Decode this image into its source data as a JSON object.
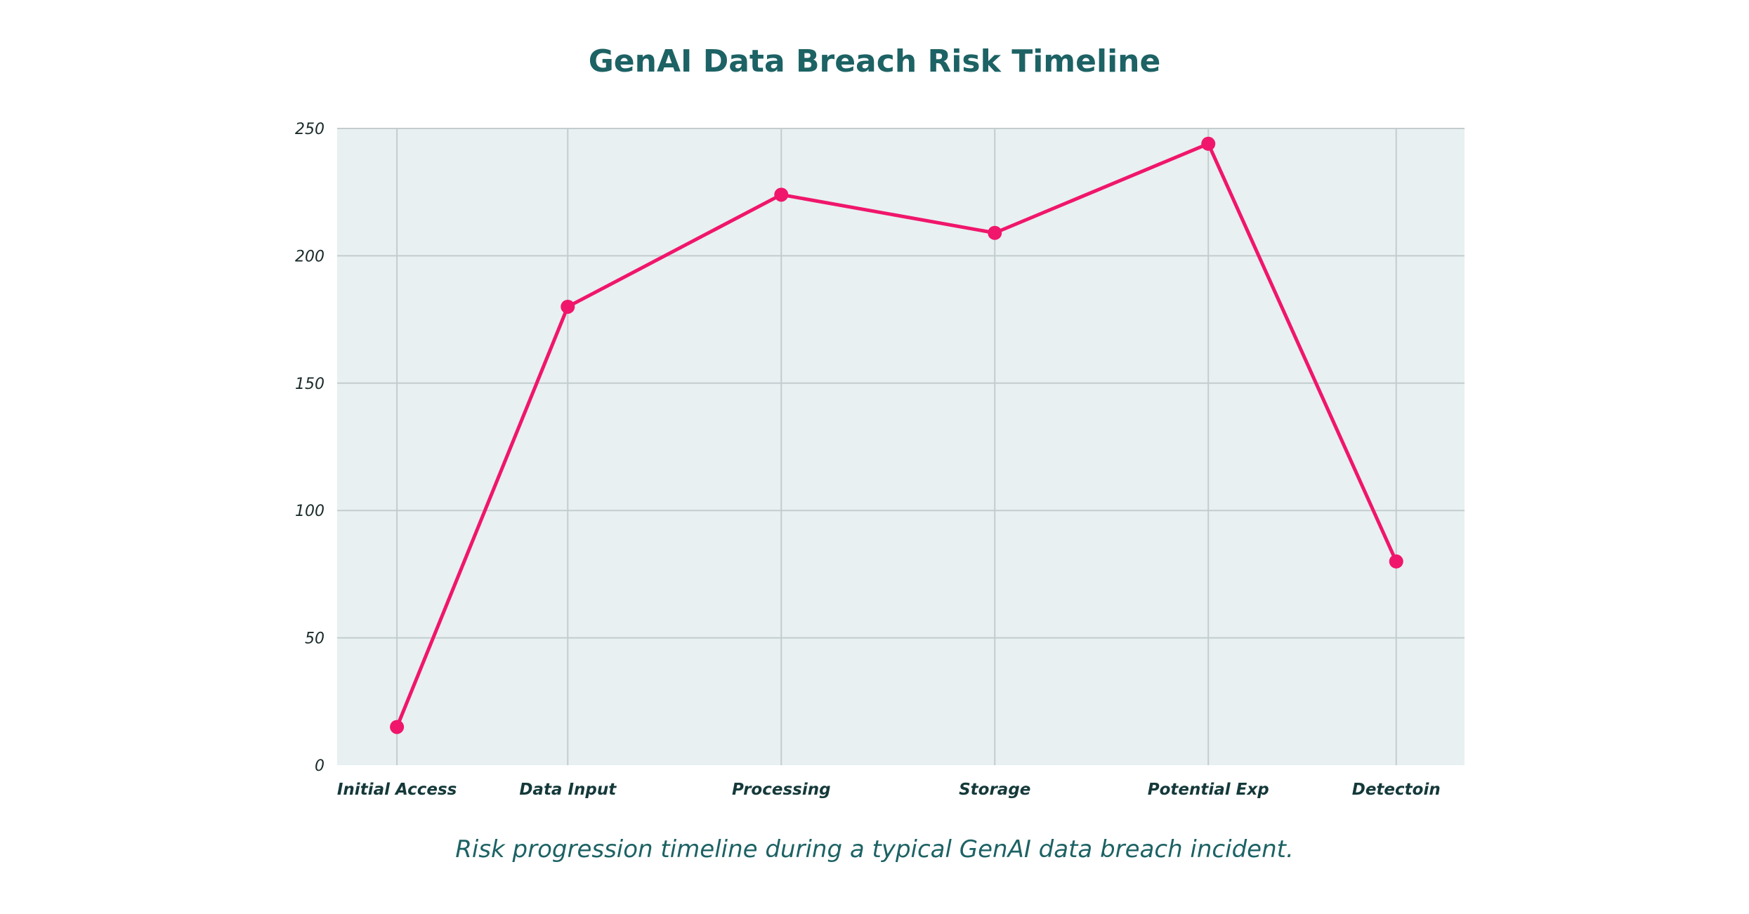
{
  "caption": "Risk progression timeline during a typical GenAI data breach incident.",
  "colors": {
    "line": "#f0166b",
    "plot_background": "#e8f0f1",
    "grid": "#c3ccce",
    "title": "#1d6264"
  },
  "chart_data": {
    "type": "line",
    "title": "GenAI Data Breach Risk Timeline",
    "xlabel": "",
    "ylabel": "",
    "categories": [
      "Initial Access",
      "Data Input",
      "Processing",
      "Storage",
      "Potential Exp",
      "Detectoin"
    ],
    "x_positions": [
      0.35,
      1.35,
      2.6,
      3.85,
      5.1,
      6.2
    ],
    "x_range": [
      0,
      6.6
    ],
    "values": [
      15,
      180,
      224,
      209,
      244,
      80
    ],
    "ylim": [
      0,
      250
    ],
    "yticks": [
      0,
      50,
      100,
      150,
      200,
      250
    ],
    "grid": true,
    "markers": true
  }
}
